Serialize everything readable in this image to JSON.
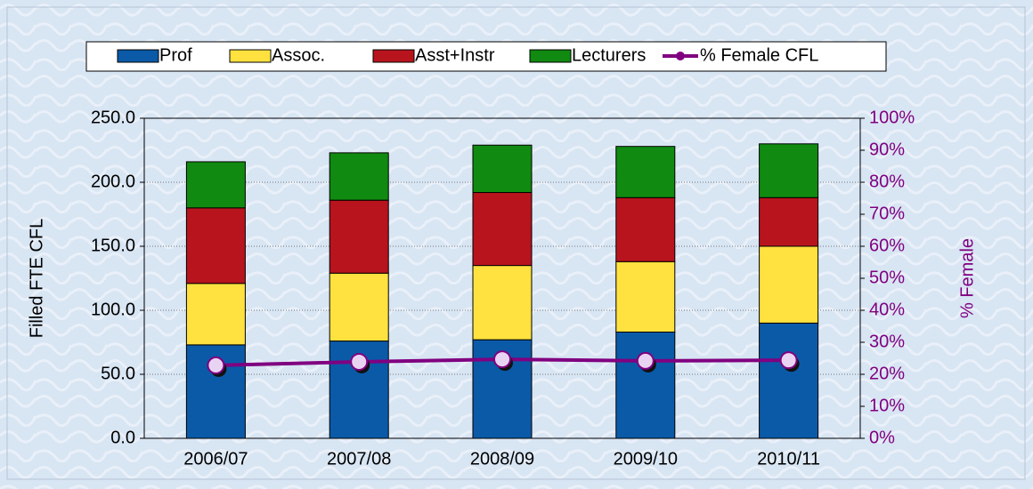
{
  "chart_data": {
    "type": "bar",
    "stacked": true,
    "categories": [
      "2006/07",
      "2007/08",
      "2008/09",
      "2009/10",
      "2010/11"
    ],
    "series": [
      {
        "name": "Prof",
        "color": "#0b5aa8",
        "values": [
          73,
          76,
          77,
          83,
          90
        ]
      },
      {
        "name": "Assoc.",
        "color": "#ffe23f",
        "values": [
          48,
          53,
          58,
          55,
          60
        ]
      },
      {
        "name": "Asst+Instr",
        "color": "#b8141e",
        "values": [
          59,
          57,
          57,
          50,
          38
        ]
      },
      {
        "name": "Lecturers",
        "color": "#108a10",
        "values": [
          36,
          37,
          37,
          40,
          42
        ]
      },
      {
        "name": "% Female CFL",
        "type": "line",
        "axis": "y2",
        "color": "#800080",
        "values": [
          22.8,
          23.9,
          24.7,
          24.2,
          24.4
        ]
      }
    ],
    "ylabel": "Filled FTE CFL",
    "y2label": "% Female",
    "ylim": [
      0,
      250
    ],
    "yticks": [
      {
        "value": 0,
        "label": "0.0"
      },
      {
        "value": 50,
        "label": "50.0"
      },
      {
        "value": 100,
        "label": "100.0"
      },
      {
        "value": 150,
        "label": "150.0"
      },
      {
        "value": 200,
        "label": "200.0"
      },
      {
        "value": 250,
        "label": "250.0"
      }
    ],
    "y2lim": [
      0,
      100
    ],
    "y2ticks": [
      {
        "value": 0,
        "label": "0%"
      },
      {
        "value": 10,
        "label": "10%"
      },
      {
        "value": 20,
        "label": "20%"
      },
      {
        "value": 30,
        "label": "30%"
      },
      {
        "value": 40,
        "label": "40%"
      },
      {
        "value": 50,
        "label": "50%"
      },
      {
        "value": 60,
        "label": "60%"
      },
      {
        "value": 70,
        "label": "70%"
      },
      {
        "value": 80,
        "label": "80%"
      },
      {
        "value": 90,
        "label": "90%"
      },
      {
        "value": 100,
        "label": "100%"
      }
    ],
    "grid": true,
    "legend": "top"
  }
}
